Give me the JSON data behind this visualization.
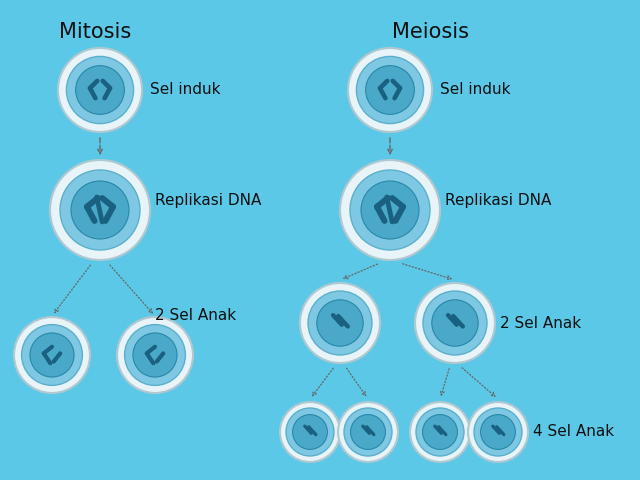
{
  "background_color": "#5bc8e8",
  "title_mitosis": "Mitosis",
  "title_meiosis": "Meiosis",
  "label_sel_induk": "Sel induk",
  "label_replikasi": "Replikasi DNA",
  "label_2sel_anak": "2 Sel Anak",
  "label_4sel_anak": "4 Sel Anak",
  "cell_outer_color": "#e8f4f8",
  "cell_outer_edge": "#b0c8d0",
  "cell_inner_color": "#7ec8e3",
  "cell_inner_edge": "#5ab0cc",
  "cell_nucleus_color": "#4aa8c8",
  "cell_nucleus_edge": "#2888a8",
  "cell_chrom_color": "#1a6080",
  "text_color": "#111111",
  "arrow_color": "#666666",
  "font_size_title": 15,
  "font_size_label": 11
}
